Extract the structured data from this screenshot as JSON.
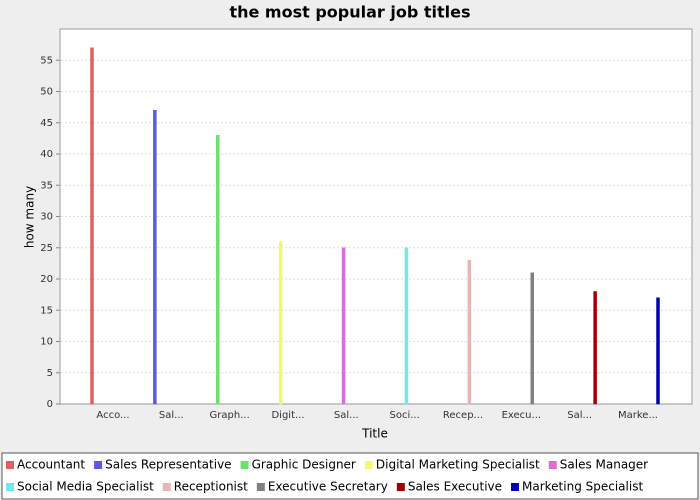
{
  "chart_data": {
    "type": "bar",
    "title": "the most popular job titles",
    "xlabel": "Title",
    "ylabel": "how many",
    "categories": [
      "Acco...",
      "Sal...",
      "Graph...",
      "Digit...",
      "Sal...",
      "Soci...",
      "Recep...",
      "Execu...",
      "Sal...",
      "Marke..."
    ],
    "series": [
      {
        "name": "Accountant",
        "color": "#e06060",
        "values": [
          57,
          null,
          null,
          null,
          null,
          null,
          null,
          null,
          null,
          null
        ]
      },
      {
        "name": "Sales Representative",
        "color": "#5a5ae6",
        "values": [
          null,
          47,
          null,
          null,
          null,
          null,
          null,
          null,
          null,
          null
        ]
      },
      {
        "name": "Graphic Designer",
        "color": "#6ee06e",
        "values": [
          null,
          null,
          43,
          null,
          null,
          null,
          null,
          null,
          null,
          null
        ]
      },
      {
        "name": "Digital Marketing Specialist",
        "color": "#f5f57a",
        "values": [
          null,
          null,
          null,
          26,
          null,
          null,
          null,
          null,
          null,
          null
        ]
      },
      {
        "name": "Sales Manager",
        "color": "#d66ed6",
        "values": [
          null,
          null,
          null,
          null,
          25,
          null,
          null,
          null,
          null,
          null
        ]
      },
      {
        "name": "Social Media Specialist",
        "color": "#6eeaea",
        "values": [
          null,
          null,
          null,
          null,
          null,
          25,
          null,
          null,
          null,
          null
        ]
      },
      {
        "name": "Receptionist",
        "color": "#e8b4b4",
        "values": [
          null,
          null,
          null,
          null,
          null,
          null,
          23,
          null,
          null,
          null
        ]
      },
      {
        "name": "Executive Secretary",
        "color": "#808080",
        "values": [
          null,
          null,
          null,
          null,
          null,
          null,
          null,
          21,
          null,
          null
        ]
      },
      {
        "name": "Sales Executive",
        "color": "#a00000",
        "values": [
          null,
          null,
          null,
          null,
          null,
          null,
          null,
          null,
          18,
          null
        ]
      },
      {
        "name": "Marketing Specialist",
        "color": "#0000b0",
        "values": [
          null,
          null,
          null,
          null,
          null,
          null,
          null,
          null,
          null,
          17
        ]
      }
    ],
    "ylim": [
      0,
      60
    ],
    "yticks": [
      0,
      5,
      10,
      15,
      20,
      25,
      30,
      35,
      40,
      45,
      50,
      55
    ],
    "grid": true
  }
}
